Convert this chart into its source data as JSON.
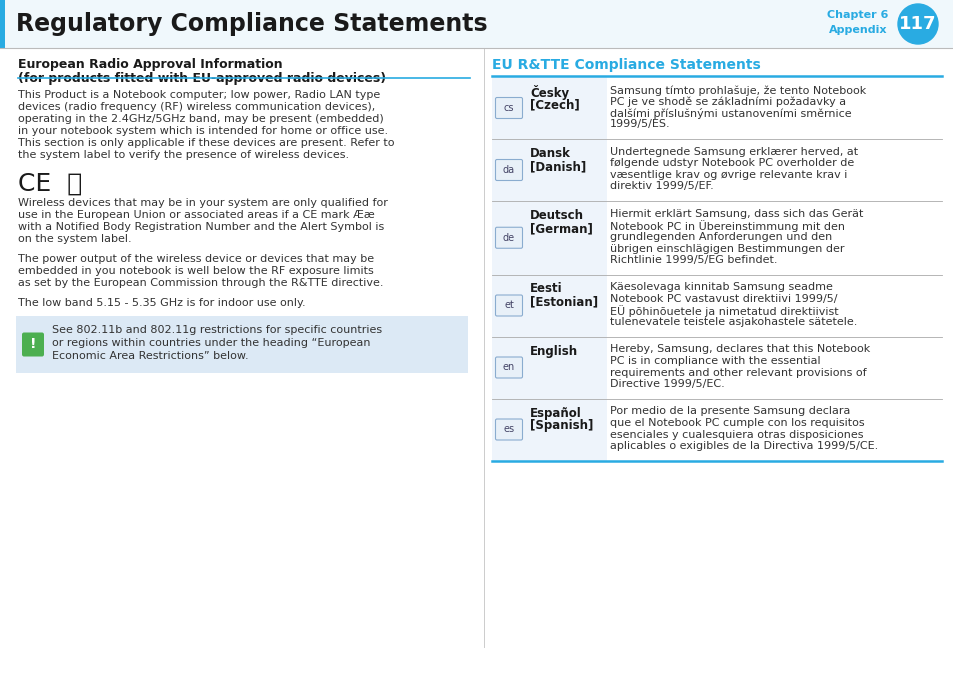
{
  "title": "Regulatory Compliance Statements",
  "chapter_label": "Chapter 6",
  "appendix_label": "Appendix",
  "page_number": "117",
  "header_title_color": "#1a1a1a",
  "chapter_text_color": "#29abe2",
  "page_circle_color": "#29abe2",
  "header_bar_color": "#e8f4fb",
  "divider_color": "#bbbbbb",
  "blue_line_color": "#29abe2",
  "left_heading_line1": "European Radio Approval Information",
  "left_heading_line2": "(for products fitted with EU-approved radio devices)",
  "left_para1_lines": [
    "This Product is a Notebook computer; low power, Radio LAN type",
    "devices (radio frequency (RF) wireless communication devices),",
    "operating in the 2.4GHz/5GHz band, may be present (embedded)",
    "in your notebook system which is intended for home or office use.",
    "This section is only applicable if these devices are present. Refer to",
    "the system label to verify the presence of wireless devices."
  ],
  "left_para2_lines": [
    "Wireless devices that may be in your system are only qualified for",
    "use in the European Union or associated areas if a CE mark Ææ",
    "with a Notified Body Registration Number and the Alert Symbol is",
    "on the system label."
  ],
  "left_para3_lines": [
    "The power output of the wireless device or devices that may be",
    "embedded in you notebook is well below the RF exposure limits",
    "as set by the European Commission through the R&TTE directive."
  ],
  "left_para4": "The low band 5.15 - 5.35 GHz is for indoor use only.",
  "warning_bg": "#dce9f5",
  "warning_icon_bg": "#4caf50",
  "warning_text_lines": [
    "See 802.11b and 802.11g restrictions for specific countries",
    "or regions within countries under the heading “European",
    "Economic Area Restrictions” below."
  ],
  "right_heading": "EU R&TTE Compliance Statements",
  "right_heading_color": "#29abe2",
  "table_rows": [
    {
      "code": "cs",
      "lang1": "Česky",
      "lang2": "[Czech]",
      "text_lines": [
        "Samsung tímto prohlašuje, že tento Notebook",
        "PC je ve shodě se základními požadavky a",
        "dalšími příslušnými ustanoveními směrnice",
        "1999/5/ES."
      ]
    },
    {
      "code": "da",
      "lang1": "Dansk",
      "lang2": "[Danish]",
      "text_lines": [
        "Undertegnede Samsung erklærer herved, at",
        "følgende udstyr Notebook PC overholder de",
        "væsentlige krav og øvrige relevante krav i",
        "direktiv 1999/5/EF."
      ]
    },
    {
      "code": "de",
      "lang1": "Deutsch",
      "lang2": "[German]",
      "text_lines": [
        "Hiermit erklärt Samsung, dass sich das Gerät",
        "Notebook PC in Übereinstimmung mit den",
        "grundlegenden Anforderungen und den",
        "übrigen einschlägigen Bestimmungen der",
        "Richtlinie 1999/5/EG befindet."
      ]
    },
    {
      "code": "et",
      "lang1": "Eesti",
      "lang2": "[Estonian]",
      "text_lines": [
        "Käesolevaga kinnitab Samsung seadme",
        "Notebook PC vastavust direktiivi 1999/5/",
        "EÜ põhinõuetele ja nimetatud direktiivist",
        "tulenevatele teistele asjakohastele sätetele."
      ]
    },
    {
      "code": "en",
      "lang1": "English",
      "lang2": "",
      "text_lines": [
        "Hereby, Samsung, declares that this Notebook",
        "PC is in compliance with the essential",
        "requirements and other relevant provisions of",
        "Directive 1999/5/EC."
      ]
    },
    {
      "code": "es",
      "lang1": "Español",
      "lang2": "[Spanish]",
      "text_lines": [
        "Por medio de la presente Samsung declara",
        "que el Notebook PC cumple con los requisitos",
        "esenciales y cualesquiera otras disposiciones",
        "aplicables o exigibles de la Directiva 1999/5/CE."
      ]
    }
  ],
  "table_top_color": "#29abe2",
  "table_divider_color": "#aaaaaa",
  "code_box_bg": "#e8f0f8",
  "code_box_border": "#8aaccf",
  "code_text_color": "#444466",
  "lang_color": "#1a1a1a",
  "body_text_color": "#333333",
  "bg_color": "#ffffff"
}
